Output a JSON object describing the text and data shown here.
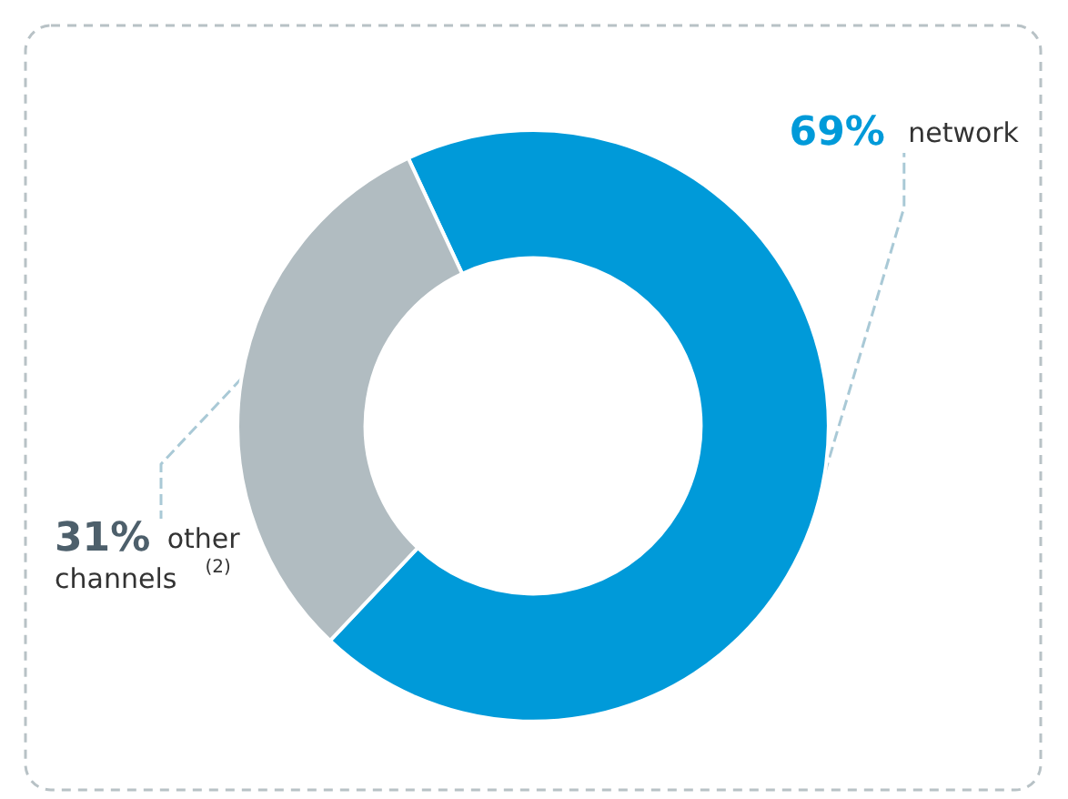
{
  "chart_data": {
    "type": "donut",
    "categories": [
      "network",
      "other channels $^{(2)}$"
    ],
    "values": [
      69,
      31
    ],
    "colors": [
      "#009ad9",
      "#b1bcc1"
    ],
    "value_labels": [
      "69%",
      "31%"
    ],
    "legend": false
  }
}
